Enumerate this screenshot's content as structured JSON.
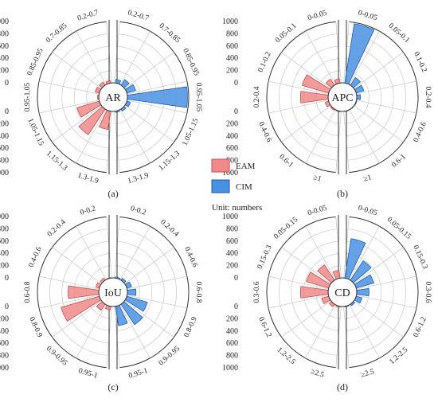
{
  "legend": {
    "items": [
      {
        "label": "EAM",
        "color": "#f08a8a"
      },
      {
        "label": "CIM",
        "color": "#4a90e2"
      }
    ],
    "unit_note": "Unit: numbers"
  },
  "chart_data": [
    {
      "type": "polar-bar",
      "panel": "(a)",
      "title": "AR",
      "rlim": [
        0,
        1000
      ],
      "radial_ticks": [
        "0",
        "200",
        "400",
        "600",
        "800",
        "1000"
      ],
      "grid": true,
      "categories": [
        "0.2-0.7",
        "0.7-0.85",
        "0.85-0.95",
        "0.95-1.05",
        "1.05-1.15",
        "1.15-1.3",
        "1.3-1.9"
      ],
      "series": [
        {
          "name": "EAM",
          "values": [
            40,
            60,
            70,
            20,
            380,
            500,
            300
          ]
        },
        {
          "name": "CIM",
          "values": [
            60,
            110,
            150,
            980,
            60,
            40,
            20
          ]
        }
      ]
    },
    {
      "type": "polar-bar",
      "panel": "(b)",
      "title": "APC",
      "rlim": [
        0,
        1000
      ],
      "radial_ticks": [
        "0",
        "200",
        "400",
        "600",
        "800",
        "1000"
      ],
      "grid": true,
      "categories": [
        "0-0.05",
        "0.05-0.1",
        "0.1-0.2",
        "0.2-0.4",
        "0.4-0.6",
        "0.6-1",
        "≥1"
      ],
      "series": [
        {
          "name": "EAM",
          "values": [
            70,
            120,
            450,
            450,
            60,
            20,
            10
          ]
        },
        {
          "name": "CIM",
          "values": [
            980,
            150,
            130,
            60,
            10,
            5,
            5
          ]
        }
      ]
    },
    {
      "type": "polar-bar",
      "panel": "(c)",
      "title": "IoU",
      "rlim": [
        0,
        1000
      ],
      "radial_ticks": [
        "0",
        "200",
        "400",
        "600",
        "800",
        "1000"
      ],
      "grid": true,
      "categories": [
        "0-0.2",
        "0.2-0.4",
        "0.4-0.6",
        "0.6-0.8",
        "0.8-0.9",
        "0.9-0.95",
        "0.95-1"
      ],
      "series": [
        {
          "name": "EAM",
          "values": [
            10,
            40,
            60,
            500,
            650,
            120,
            60
          ]
        },
        {
          "name": "CIM",
          "values": [
            20,
            40,
            80,
            140,
            350,
            400,
            320
          ]
        }
      ]
    },
    {
      "type": "polar-bar",
      "panel": "(d)",
      "title": "CD",
      "rlim": [
        0,
        1000
      ],
      "radial_ticks": [
        "0",
        "200",
        "400",
        "600",
        "800",
        "1000"
      ],
      "grid": true,
      "categories": [
        "0-0.05",
        "0.05-0.15",
        "0.15-0.3",
        "0.3-0.6",
        "0.6-1.2",
        "1.2-2.5",
        "≥2.5"
      ],
      "series": [
        {
          "name": "EAM",
          "values": [
            130,
            300,
            380,
            450,
            120,
            50,
            20
          ]
        },
        {
          "name": "CIM",
          "values": [
            650,
            380,
            300,
            200,
            100,
            30,
            10
          ]
        }
      ]
    }
  ]
}
